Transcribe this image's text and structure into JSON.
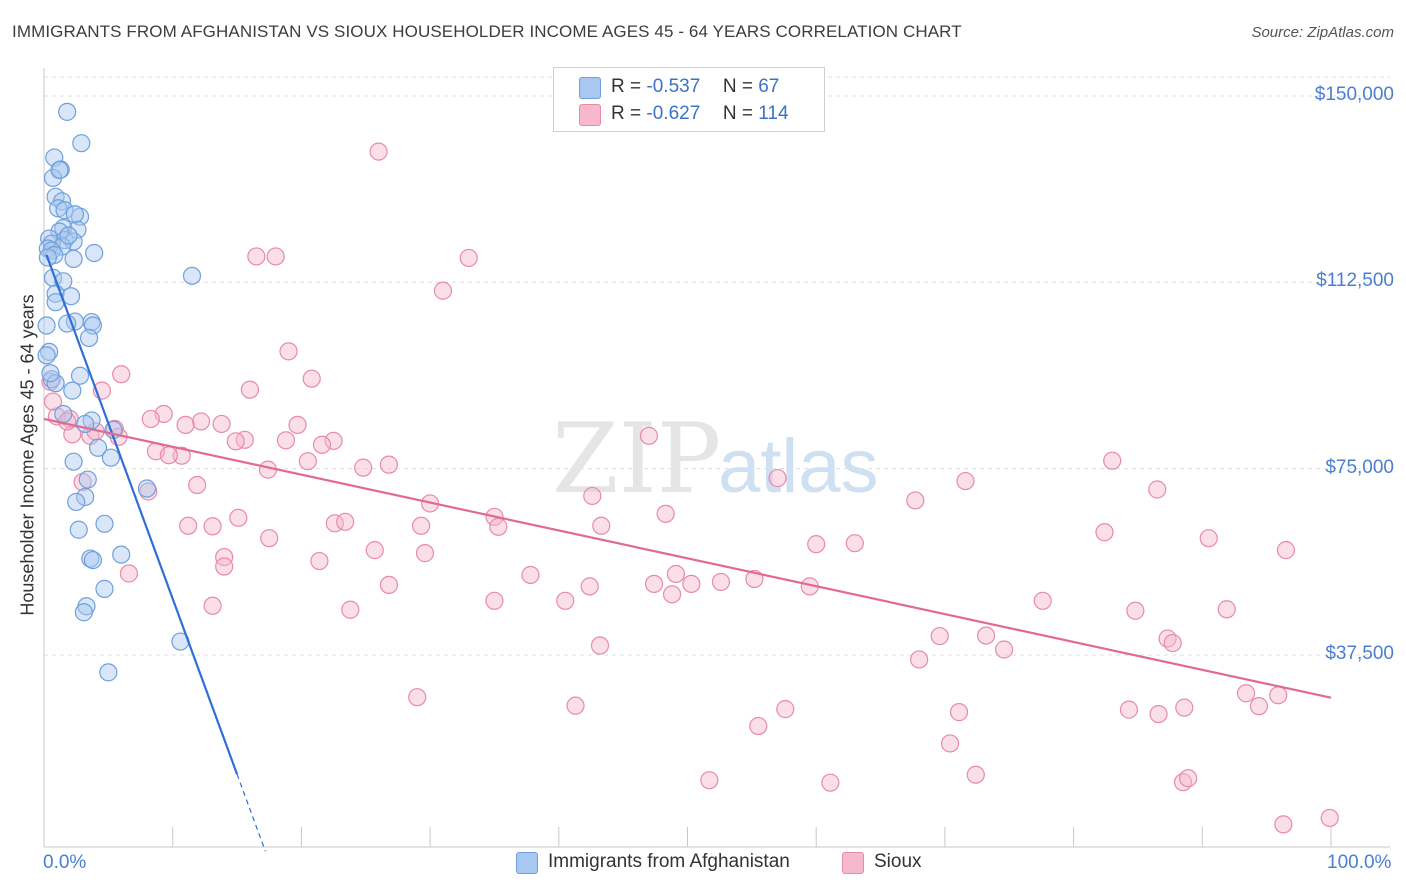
{
  "header": {
    "title": "IMMIGRANTS FROM AFGHANISTAN VS SIOUX HOUSEHOLDER INCOME AGES 45 - 64 YEARS CORRELATION CHART",
    "source": "Source: ZipAtlas.com"
  },
  "watermark": {
    "text_zip": "ZIP",
    "text_atlas": "atlas"
  },
  "legend": {
    "series": [
      {
        "r_label": "R =",
        "r_value": "-0.537",
        "n_label": "N =",
        "n_value": "67",
        "color": "#a8c8f0"
      },
      {
        "r_label": "R =",
        "r_value": "-0.627",
        "n_label": "N =",
        "n_value": "114",
        "color": "#f5b8cc"
      }
    ]
  },
  "chart_data": {
    "type": "scatter",
    "title": "IMMIGRANTS FROM AFGHANISTAN VS SIOUX HOUSEHOLDER INCOME AGES 45 - 64 YEARS CORRELATION CHART",
    "xlabel": "",
    "ylabel": "Householder Income Ages 45 - 64 years",
    "xlim": [
      0,
      100
    ],
    "ylim": [
      0,
      155000
    ],
    "x_tick_labels": [
      "0.0%",
      "100.0%"
    ],
    "y_ticks": [
      {
        "value": 37500,
        "label": "$37,500"
      },
      {
        "value": 75000,
        "label": "$75,000"
      },
      {
        "value": 112500,
        "label": "$112,500"
      },
      {
        "value": 150000,
        "label": "$150,000"
      }
    ],
    "grid": true,
    "series": [
      {
        "name": "Immigrants from Afghanistan",
        "color": "#6fa0dc",
        "fill": "#a8c8f0",
        "trend": {
          "x0": 0.2,
          "y0": 118000,
          "x1": 15.0,
          "y1": 13500,
          "dash_to_x": 17.2,
          "dash_to_y": -2000,
          "color": "#2f6fd6"
        },
        "points": [
          [
            1.8,
            146800
          ],
          [
            2.9,
            140500
          ],
          [
            0.8,
            137600
          ],
          [
            1.3,
            135200
          ],
          [
            0.7,
            133500
          ],
          [
            0.9,
            129700
          ],
          [
            1.4,
            128800
          ],
          [
            1.1,
            127400
          ],
          [
            1.6,
            127000
          ],
          [
            2.8,
            125700
          ],
          [
            1.5,
            123400
          ],
          [
            2.6,
            123100
          ],
          [
            1.2,
            122700
          ],
          [
            0.4,
            121300
          ],
          [
            1.6,
            121000
          ],
          [
            2.3,
            120700
          ],
          [
            0.6,
            120300
          ],
          [
            1.4,
            119700
          ],
          [
            0.3,
            119300
          ],
          [
            0.6,
            118900
          ],
          [
            3.9,
            118400
          ],
          [
            0.8,
            118000
          ],
          [
            0.3,
            117500
          ],
          [
            2.3,
            117200
          ],
          [
            11.5,
            113800
          ],
          [
            0.7,
            113400
          ],
          [
            1.5,
            112700
          ],
          [
            0.9,
            110200
          ],
          [
            2.1,
            109700
          ],
          [
            2.4,
            104600
          ],
          [
            1.8,
            104200
          ],
          [
            3.7,
            104500
          ],
          [
            3.8,
            103800
          ],
          [
            0.2,
            103800
          ],
          [
            3.5,
            101300
          ],
          [
            0.4,
            98500
          ],
          [
            0.2,
            97800
          ],
          [
            2.8,
            93700
          ],
          [
            0.6,
            93000
          ],
          [
            0.9,
            92200
          ],
          [
            2.2,
            90700
          ],
          [
            1.5,
            86000
          ],
          [
            3.7,
            84700
          ],
          [
            3.2,
            84000
          ],
          [
            5.4,
            82800
          ],
          [
            4.2,
            79200
          ],
          [
            5.2,
            77200
          ],
          [
            2.3,
            76400
          ],
          [
            3.4,
            72800
          ],
          [
            8.0,
            71000
          ],
          [
            3.2,
            69300
          ],
          [
            2.5,
            68300
          ],
          [
            4.7,
            63900
          ],
          [
            2.7,
            62700
          ],
          [
            6.0,
            57700
          ],
          [
            3.6,
            56900
          ],
          [
            3.8,
            56600
          ],
          [
            4.7,
            50800
          ],
          [
            3.3,
            47300
          ],
          [
            3.1,
            46100
          ],
          [
            10.6,
            40200
          ],
          [
            5.0,
            34000
          ],
          [
            1.9,
            121900
          ],
          [
            1.2,
            135100
          ],
          [
            2.4,
            126200
          ],
          [
            0.5,
            94200
          ],
          [
            0.9,
            108500
          ]
        ]
      },
      {
        "name": "Sioux",
        "color": "#e88aa8",
        "fill": "#f5b8cc",
        "trend": {
          "x0": 0.0,
          "y0": 85000,
          "x1": 100.0,
          "y1": 28900,
          "color": "#e06a93"
        },
        "points": [
          [
            26.0,
            138800
          ],
          [
            16.5,
            117700
          ],
          [
            18.0,
            117700
          ],
          [
            33.0,
            117400
          ],
          [
            31.0,
            110800
          ],
          [
            19.0,
            98600
          ],
          [
            20.8,
            93100
          ],
          [
            6.0,
            94000
          ],
          [
            16.0,
            90900
          ],
          [
            4.5,
            90700
          ],
          [
            9.3,
            86000
          ],
          [
            8.3,
            85000
          ],
          [
            12.2,
            84500
          ],
          [
            13.8,
            84000
          ],
          [
            11.0,
            83800
          ],
          [
            19.7,
            83800
          ],
          [
            5.5,
            83000
          ],
          [
            2.2,
            81900
          ],
          [
            3.6,
            81600
          ],
          [
            5.8,
            81400
          ],
          [
            15.6,
            80800
          ],
          [
            14.9,
            80500
          ],
          [
            18.8,
            80700
          ],
          [
            22.5,
            80600
          ],
          [
            21.6,
            79800
          ],
          [
            47.0,
            81600
          ],
          [
            8.7,
            78500
          ],
          [
            10.7,
            77600
          ],
          [
            9.7,
            77700
          ],
          [
            20.5,
            76500
          ],
          [
            17.4,
            74800
          ],
          [
            24.8,
            75200
          ],
          [
            26.8,
            75800
          ],
          [
            83.0,
            76600
          ],
          [
            57.0,
            73100
          ],
          [
            71.6,
            72500
          ],
          [
            11.9,
            71700
          ],
          [
            3.0,
            72300
          ],
          [
            8.1,
            70400
          ],
          [
            42.6,
            69500
          ],
          [
            86.5,
            70800
          ],
          [
            67.7,
            68600
          ],
          [
            30.0,
            68000
          ],
          [
            11.2,
            63500
          ],
          [
            13.1,
            63400
          ],
          [
            15.1,
            65100
          ],
          [
            22.6,
            64000
          ],
          [
            23.4,
            64300
          ],
          [
            29.3,
            63500
          ],
          [
            35.0,
            65300
          ],
          [
            35.3,
            63300
          ],
          [
            43.3,
            63500
          ],
          [
            48.3,
            65900
          ],
          [
            17.5,
            61000
          ],
          [
            82.4,
            62200
          ],
          [
            90.5,
            61000
          ],
          [
            60.0,
            59800
          ],
          [
            63.0,
            60000
          ],
          [
            96.5,
            58600
          ],
          [
            14.0,
            57200
          ],
          [
            25.7,
            58600
          ],
          [
            29.6,
            58000
          ],
          [
            21.4,
            56400
          ],
          [
            14.0,
            55300
          ],
          [
            6.6,
            53900
          ],
          [
            37.8,
            53600
          ],
          [
            49.1,
            53800
          ],
          [
            26.8,
            51600
          ],
          [
            42.4,
            51300
          ],
          [
            52.6,
            52200
          ],
          [
            47.4,
            51800
          ],
          [
            50.3,
            51800
          ],
          [
            55.2,
            52800
          ],
          [
            59.5,
            51300
          ],
          [
            48.8,
            49700
          ],
          [
            35.0,
            48400
          ],
          [
            40.5,
            48400
          ],
          [
            77.6,
            48400
          ],
          [
            13.1,
            47400
          ],
          [
            23.8,
            46600
          ],
          [
            84.8,
            46400
          ],
          [
            91.9,
            46700
          ],
          [
            69.6,
            41300
          ],
          [
            73.2,
            41400
          ],
          [
            87.3,
            40800
          ],
          [
            87.7,
            39900
          ],
          [
            43.2,
            39400
          ],
          [
            74.6,
            38600
          ],
          [
            68.0,
            36600
          ],
          [
            93.4,
            29800
          ],
          [
            95.9,
            29400
          ],
          [
            94.4,
            27200
          ],
          [
            29.0,
            29000
          ],
          [
            41.3,
            27300
          ],
          [
            57.6,
            26600
          ],
          [
            71.1,
            26000
          ],
          [
            84.3,
            26500
          ],
          [
            86.6,
            25600
          ],
          [
            88.6,
            26900
          ],
          [
            55.5,
            23200
          ],
          [
            70.4,
            19700
          ],
          [
            72.4,
            13400
          ],
          [
            51.7,
            12300
          ],
          [
            61.1,
            11800
          ],
          [
            88.5,
            11900
          ],
          [
            88.9,
            12700
          ],
          [
            96.3,
            3400
          ],
          [
            99.9,
            4700
          ],
          [
            0.5,
            92500
          ],
          [
            1.0,
            85500
          ],
          [
            2.0,
            85000
          ],
          [
            0.7,
            88500
          ],
          [
            1.8,
            84500
          ],
          [
            4.0,
            82500
          ]
        ]
      }
    ]
  },
  "legend_bottom": {
    "items": [
      {
        "label": "Immigrants from Afghanistan",
        "color": "#a8c8f0"
      },
      {
        "label": "Sioux",
        "color": "#f5b8cc"
      }
    ]
  }
}
